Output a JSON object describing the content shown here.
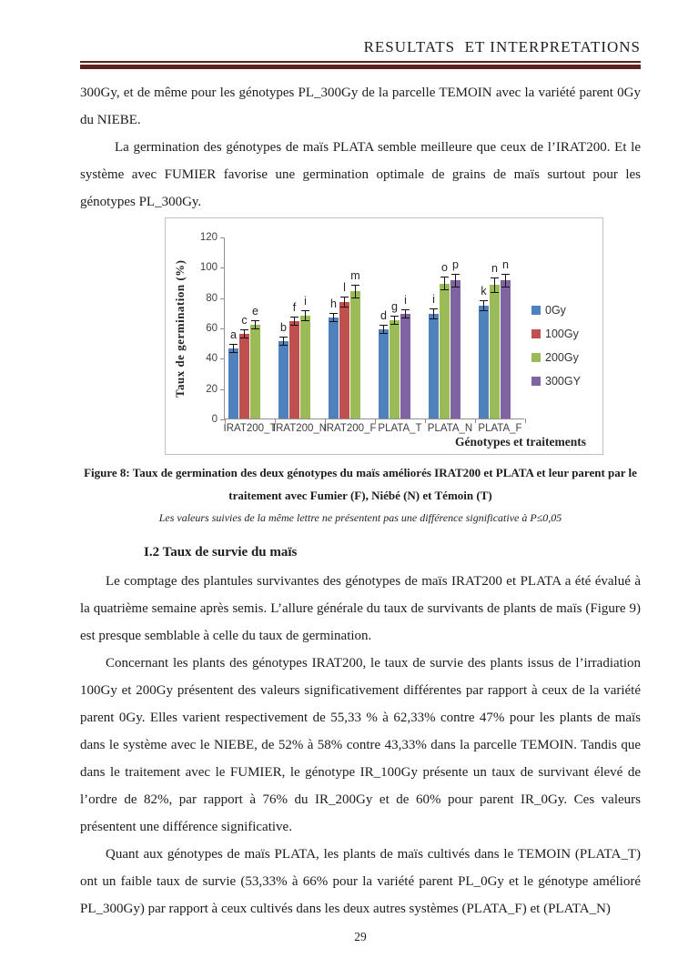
{
  "page": {
    "header_title": "RESULTATS  ET INTERPRETATIONS",
    "page_number": "29",
    "accent_color": "#5F2120"
  },
  "paragraphs": {
    "p1": "300Gy, et de même pour les génotypes PL_300Gy de la parcelle TEMOIN avec la variété parent 0Gy du NIEBE.",
    "p2": "La germination des génotypes de maïs PLATA semble meilleure que ceux de l’IRAT200. Et le système avec FUMIER favorise une germination optimale de grains de maïs surtout pour les génotypes PL_300Gy.",
    "section_heading": "I.2 Taux de survie du maïs",
    "p3": "Le comptage des plantules survivantes des génotypes de maïs IRAT200 et PLATA a été évalué à la quatrième semaine après semis. L’allure générale du taux de survivants de plants de maïs (Figure 9) est presque semblable à celle du taux de germination.",
    "p4": "Concernant  les plants des génotypes IRAT200, le taux de survie des plants issus de l’irradiation 100Gy et 200Gy présentent des valeurs significativement différentes par rapport à ceux de la variété parent 0Gy. Elles varient respectivement de 55,33 % à 62,33% contre 47% pour les plants de maïs dans le système avec le NIEBE, de 52% à 58% contre 43,33% dans la parcelle TEMOIN. Tandis que dans le traitement avec le FUMIER, le génotype IR_100Gy présente un taux de survivant élevé de l’ordre de 82%, par rapport à 76% du IR_200Gy et de 60% pour parent IR_0Gy. Ces valeurs présentent une différence significative.",
    "p5": "Quant aux génotypes de maïs PLATA, les plants de maïs cultivés dans le TEMOIN (PLATA_T) ont un faible taux de survie (53,33% à 66% pour la variété parent PL_0Gy et le génotype  amélioré PL_300Gy) par rapport à ceux cultivés dans les deux autres systèmes (PLATA_F) et (PLATA_N)"
  },
  "figure": {
    "caption": "Figure 8: Taux de germination des deux génotypes du maïs améliorés IRAT200 et PLATA et leur parent par le traitement avec Fumier (F), Niébé (N) et Témoin (T)",
    "note": "Les valeurs suivies de la même lettre ne présentent pas une différence significative à P≤0,05"
  },
  "chart_data": {
    "type": "bar",
    "title": "",
    "ylabel": "Taux de germination (%)",
    "xlabel": "Génotypes et traitements",
    "ylim": [
      0,
      120
    ],
    "yticks": [
      0,
      20,
      40,
      60,
      80,
      100,
      120
    ],
    "grid": false,
    "legend_position": "right",
    "legend": [
      {
        "label": "0Gy",
        "color": "#4F81BD"
      },
      {
        "label": "100Gy",
        "color": "#C0504D"
      },
      {
        "label": "200Gy",
        "color": "#9BBB59"
      },
      {
        "label": "300GY",
        "color": "#8064A2"
      }
    ],
    "categories": [
      "IRAT200_T",
      "IRAT200_N",
      "IRAT200_F",
      "PLATA_T",
      "PLATA_N",
      "PLATA_F"
    ],
    "groups": [
      {
        "category": "IRAT200_T",
        "bars": [
          {
            "series": "0Gy",
            "value": 46,
            "err": 3,
            "letter": "a"
          },
          {
            "series": "100Gy",
            "value": 56,
            "err": 3,
            "letter": "c"
          },
          {
            "series": "200Gy",
            "value": 62,
            "err": 3,
            "letter": "e"
          }
        ]
      },
      {
        "category": "IRAT200_N",
        "bars": [
          {
            "series": "0Gy",
            "value": 51,
            "err": 3,
            "letter": "b"
          },
          {
            "series": "100Gy",
            "value": 64,
            "err": 3,
            "letter": "f"
          },
          {
            "series": "200Gy",
            "value": 68,
            "err": 3.5,
            "letter": "i"
          }
        ]
      },
      {
        "category": "IRAT200_F",
        "bars": [
          {
            "series": "0Gy",
            "value": 66.5,
            "err": 3,
            "letter": "h"
          },
          {
            "series": "100Gy",
            "value": 77,
            "err": 3.5,
            "letter": "l"
          },
          {
            "series": "200Gy",
            "value": 84,
            "err": 4.5,
            "letter": "m"
          }
        ]
      },
      {
        "category": "PLATA_T",
        "bars": [
          {
            "series": "0Gy",
            "value": 59,
            "err": 3,
            "letter": "d"
          },
          {
            "series": "200Gy",
            "value": 65,
            "err": 3,
            "letter": "g"
          },
          {
            "series": "300GY",
            "value": 69,
            "err": 3,
            "letter": "i"
          }
        ]
      },
      {
        "category": "PLATA_N",
        "bars": [
          {
            "series": "0Gy",
            "value": 69,
            "err": 3.5,
            "letter": "i"
          },
          {
            "series": "200Gy",
            "value": 89,
            "err": 4.5,
            "letter": "o"
          },
          {
            "series": "300GY",
            "value": 91,
            "err": 4.5,
            "letter": "p"
          }
        ]
      },
      {
        "category": "PLATA_F",
        "bars": [
          {
            "series": "0Gy",
            "value": 74.5,
            "err": 3.5,
            "letter": "k"
          },
          {
            "series": "200Gy",
            "value": 88,
            "err": 5,
            "letter": "n"
          },
          {
            "series": "300GY",
            "value": 91,
            "err": 4.5,
            "letter": "n"
          }
        ]
      }
    ]
  }
}
